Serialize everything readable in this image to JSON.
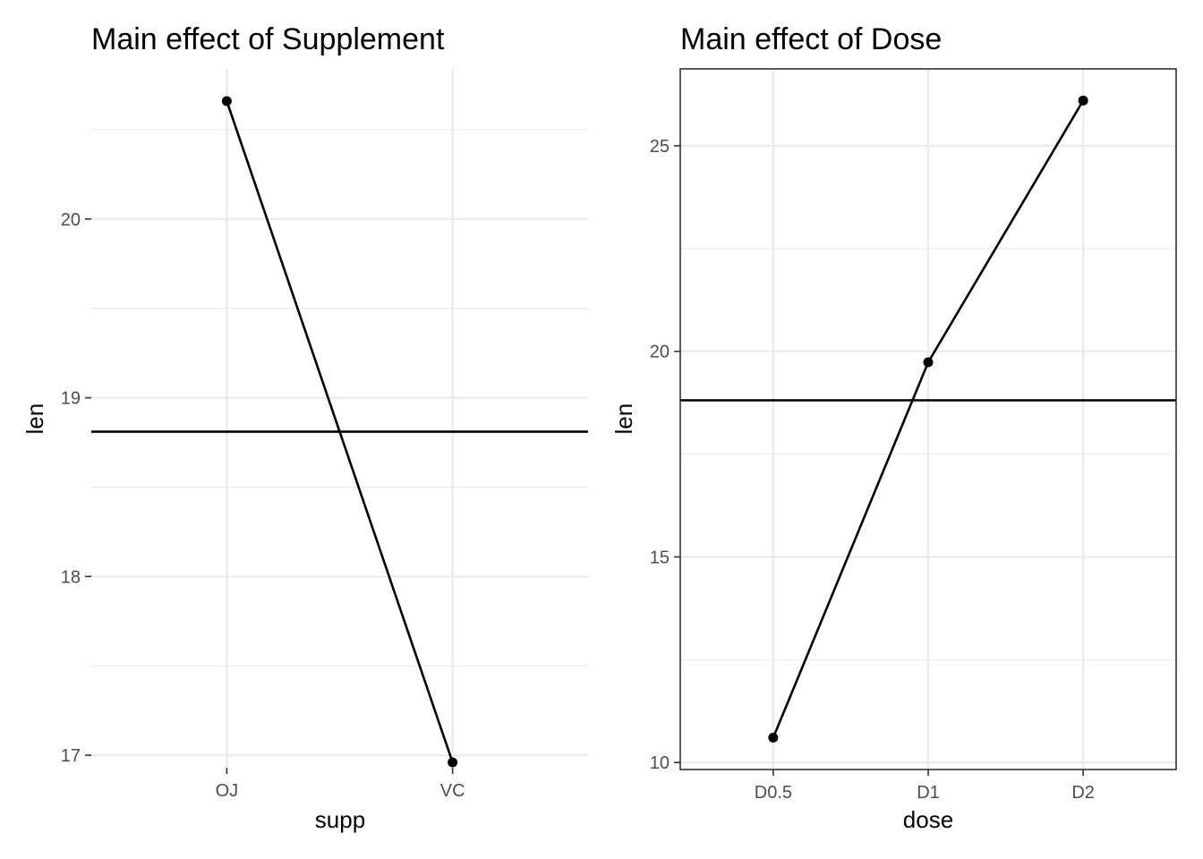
{
  "chart_data": [
    {
      "type": "line",
      "title": "Main effect of Supplement",
      "xlabel": "supp",
      "ylabel": "len",
      "categories": [
        "OJ",
        "VC"
      ],
      "values": [
        20.66,
        16.96
      ],
      "hline": 18.81,
      "ylim": [
        16.93,
        20.84
      ],
      "yticks": [
        17,
        18,
        19,
        20
      ],
      "yminor": [
        17.5,
        18.5,
        19.5,
        20.5
      ],
      "panel_border": false,
      "grid": true
    },
    {
      "type": "line",
      "title": "Main effect of Dose",
      "xlabel": "dose",
      "ylabel": "len",
      "categories": [
        "D0.5",
        "D1",
        "D2"
      ],
      "values": [
        10.605,
        19.735,
        26.1
      ],
      "hline": 18.81,
      "ylim": [
        9.83,
        26.87
      ],
      "yticks": [
        10,
        15,
        20,
        25
      ],
      "yminor": [
        12.5,
        17.5,
        22.5
      ],
      "panel_border": true,
      "grid": true
    }
  ]
}
